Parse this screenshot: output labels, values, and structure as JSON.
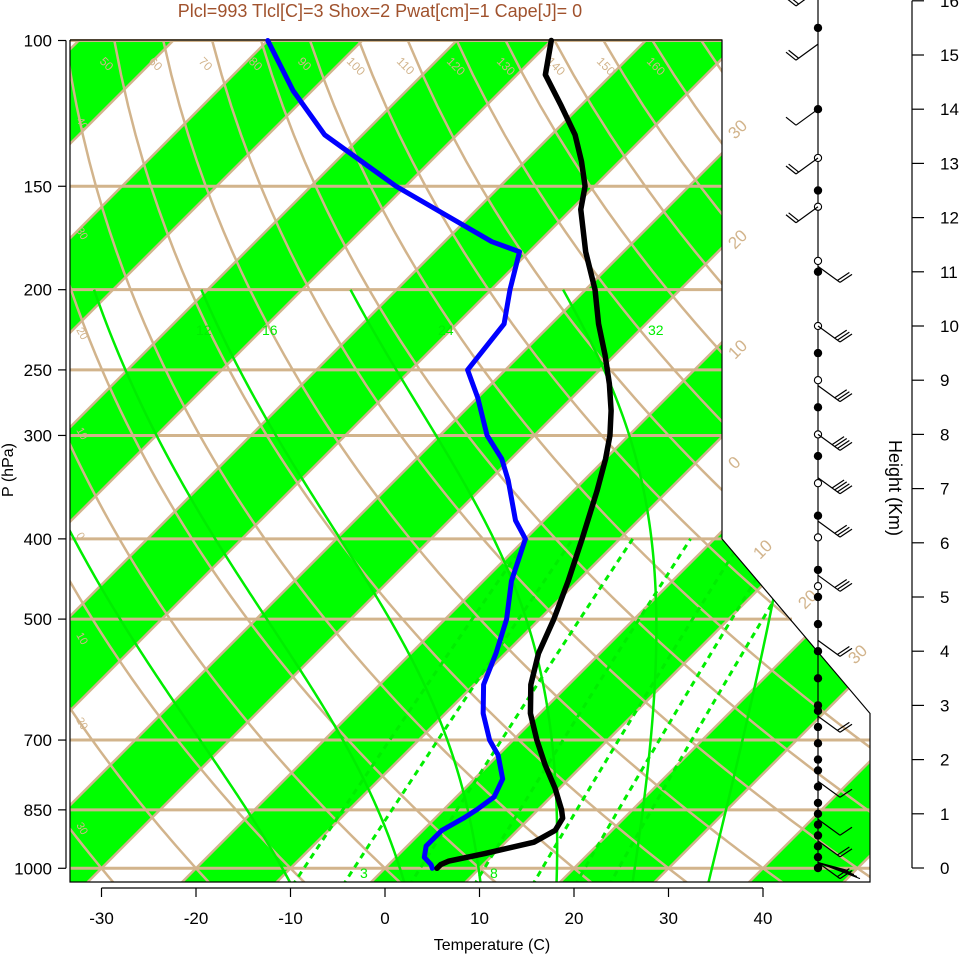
{
  "header": {
    "title": "Plcl=993 Tlcl[C]=3 Shox=2 Pwat[cm]=1 Cape[J]= 0",
    "title_color": "#a0522d"
  },
  "colors": {
    "band_green": "#00ff00",
    "grid_tan": "#d2b48c",
    "mixing_green": "#00ee00",
    "temperature": "#000000",
    "dewpoint": "#0000ff"
  },
  "chart_data": {
    "type": "line",
    "title": "Plcl=993 Tlcl[C]=3 Shox=2 Pwat[cm]=1 Cape[J]= 0",
    "xlabel": "Temperature (C)",
    "ylabel": "P (hPa)",
    "y2label": "Height (Km)",
    "x_ticks": [
      "-30",
      "-20",
      "-10",
      "0",
      "10",
      "20",
      "30",
      "40"
    ],
    "pressure_ticks": [
      "100",
      "150",
      "200",
      "250",
      "300",
      "400",
      "500",
      "700",
      "850",
      "1000"
    ],
    "height_ticks": [
      "0",
      "1",
      "2",
      "3",
      "4",
      "5",
      "6",
      "7",
      "8",
      "9",
      "10",
      "11",
      "12",
      "13",
      "14",
      "15",
      "16"
    ],
    "xlim": [
      -34,
      36
    ],
    "ylim_hPa": [
      1050,
      100
    ],
    "isotherm_labels": [
      "50",
      "60",
      "70",
      "80",
      "90",
      "100",
      "110",
      "120",
      "130",
      "140",
      "150",
      "160"
    ],
    "right_edge_labels": [
      "30",
      "20",
      "10",
      "0",
      "10",
      "20",
      "30"
    ],
    "left_edge_labels": [
      "40",
      "30",
      "20",
      "10",
      "0",
      "10",
      "20",
      "30"
    ],
    "mixing_ratio_labels": [
      "12",
      "16",
      "24",
      "32",
      "3",
      "8"
    ],
    "series": [
      {
        "name": "Temperature",
        "pressure": [
          1000,
          990,
          980,
          960,
          930,
          900,
          870,
          850,
          800,
          750,
          700,
          650,
          600,
          550,
          500,
          450,
          400,
          350,
          320,
          300,
          280,
          260,
          240,
          220,
          200,
          180,
          160,
          150,
          140,
          130,
          120,
          110,
          100
        ],
        "values": [
          5.5,
          5.5,
          6.0,
          9.0,
          13.0,
          14.0,
          13.5,
          12.5,
          9.5,
          6.0,
          2.5,
          -1.0,
          -4.0,
          -6.5,
          -8.5,
          -11.0,
          -14.0,
          -17.5,
          -20.0,
          -22.0,
          -24.5,
          -27.5,
          -31.0,
          -35.0,
          -39.0,
          -44.0,
          -49.0,
          -51.0,
          -54.0,
          -57.5,
          -62.0,
          -67.0,
          -70.0
        ]
      },
      {
        "name": "Dewpoint",
        "pressure": [
          1000,
          990,
          970,
          940,
          900,
          870,
          850,
          820,
          780,
          730,
          700,
          650,
          600,
          550,
          500,
          450,
          400,
          380,
          340,
          320,
          300,
          270,
          250,
          220,
          200,
          180,
          175,
          150,
          130,
          115,
          100
        ],
        "values": [
          5.0,
          4.5,
          3.0,
          2.0,
          2.0,
          3.0,
          3.5,
          4.0,
          3.0,
          0.0,
          -2.5,
          -6.0,
          -9.0,
          -11.0,
          -13.5,
          -17.0,
          -20.0,
          -23.0,
          -28.0,
          -31.0,
          -35.0,
          -40.0,
          -44.0,
          -45.0,
          -48.0,
          -51.0,
          -55.0,
          -71.0,
          -84.0,
          -92.0,
          -100.0
        ]
      }
    ],
    "winds": {
      "height_km_observed": [
        0.0,
        0.2,
        0.4,
        0.6,
        0.8,
        1.0,
        1.2,
        1.5,
        1.8,
        2.0,
        2.3,
        2.6,
        2.9,
        3.0,
        3.5,
        4.0,
        4.5,
        5.0,
        5.5,
        6.5,
        7.6,
        8.5,
        9.5,
        11.0,
        12.5,
        14.0,
        15.5
      ],
      "height_km_interp": [
        5.2,
        6.1,
        7.1,
        8.0,
        9.0,
        10.0,
        11.2,
        12.2,
        13.1,
        16.3
      ],
      "barb_height_km": [
        0.1,
        0.5,
        0.9,
        1.6,
        2.8,
        4.2,
        5.4,
        6.4,
        7.2,
        8.0,
        8.9,
        10.0,
        11.1,
        12.2,
        13.1,
        14.0,
        15.2,
        16.2
      ],
      "barb_knots": [
        20,
        15,
        10,
        10,
        15,
        20,
        25,
        25,
        35,
        35,
        30,
        25,
        20,
        15,
        15,
        10,
        15,
        20
      ]
    }
  }
}
